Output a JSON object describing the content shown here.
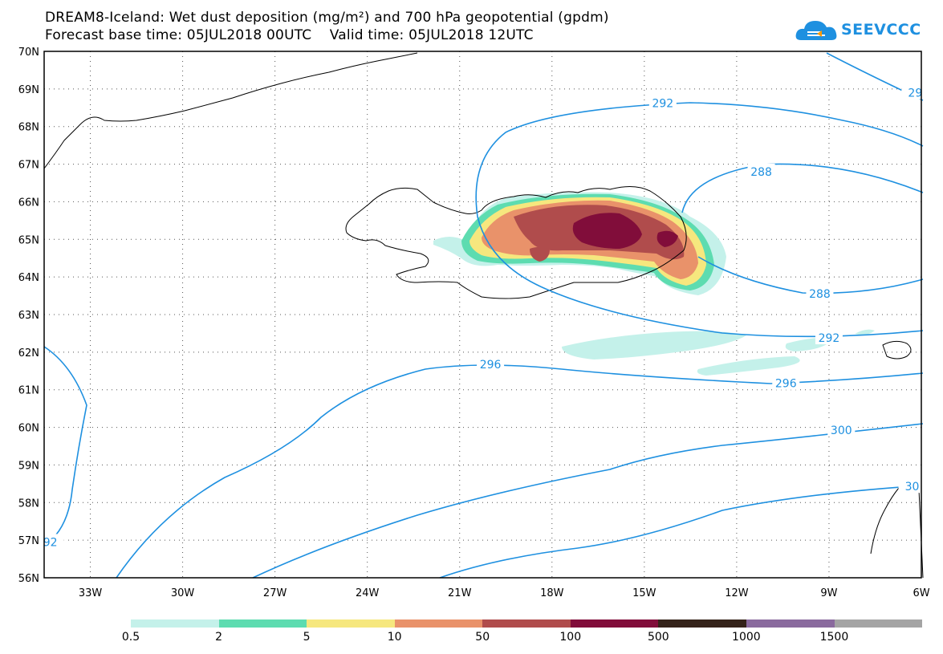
{
  "title": {
    "line1": "DREAM8-Iceland: Wet dust deposition (mg/m²) and 700 hPa geopotential (gpdm)",
    "line2": "Forecast base time: 05JUL2018 00UTC    Valid time: 05JUL2018 12UTC"
  },
  "logo": {
    "text": "SEEVCCC",
    "icon": "cloud-icon",
    "color": "#1e90e0"
  },
  "map": {
    "lat_labels": [
      "70N",
      "69N",
      "68N",
      "67N",
      "66N",
      "65N",
      "64N",
      "63N",
      "62N",
      "61N",
      "60N",
      "59N",
      "58N",
      "57N",
      "56N"
    ],
    "lon_labels": [
      "33W",
      "30W",
      "27W",
      "24W",
      "21W",
      "18W",
      "15W",
      "12W",
      "9W",
      "6W"
    ],
    "lat_range": [
      56,
      70
    ],
    "lon_range": [
      -34.5,
      -6
    ],
    "grid": "dotted",
    "contour_color": "#1e90e0",
    "contour_labels": [
      {
        "text": "292",
        "lat": 68.62,
        "lon": -14.4
      },
      {
        "text": "29",
        "lat": 68.9,
        "lon": -6.2
      },
      {
        "text": "288",
        "lat": 66.8,
        "lon": -11.2
      },
      {
        "text": "288",
        "lat": 63.55,
        "lon": -9.3
      },
      {
        "text": "292",
        "lat": 62.38,
        "lon": -9.0
      },
      {
        "text": "296",
        "lat": 61.68,
        "lon": -20.0
      },
      {
        "text": "296",
        "lat": 61.17,
        "lon": -10.4
      },
      {
        "text": "300",
        "lat": 59.93,
        "lon": -8.6
      },
      {
        "text": "30",
        "lat": 58.43,
        "lon": -6.3
      },
      {
        "text": "92",
        "lat": 56.95,
        "lon": -34.3
      }
    ]
  },
  "legend": {
    "colors": [
      "#c4f1ea",
      "#5ddcb0",
      "#f6e77e",
      "#e9926a",
      "#b04c4c",
      "#810d3a",
      "#35231a",
      "#8a6a9e",
      "#a4a4a4"
    ],
    "labels": [
      "0.5",
      "2",
      "5",
      "10",
      "50",
      "100",
      "500",
      "1000",
      "1500"
    ]
  }
}
